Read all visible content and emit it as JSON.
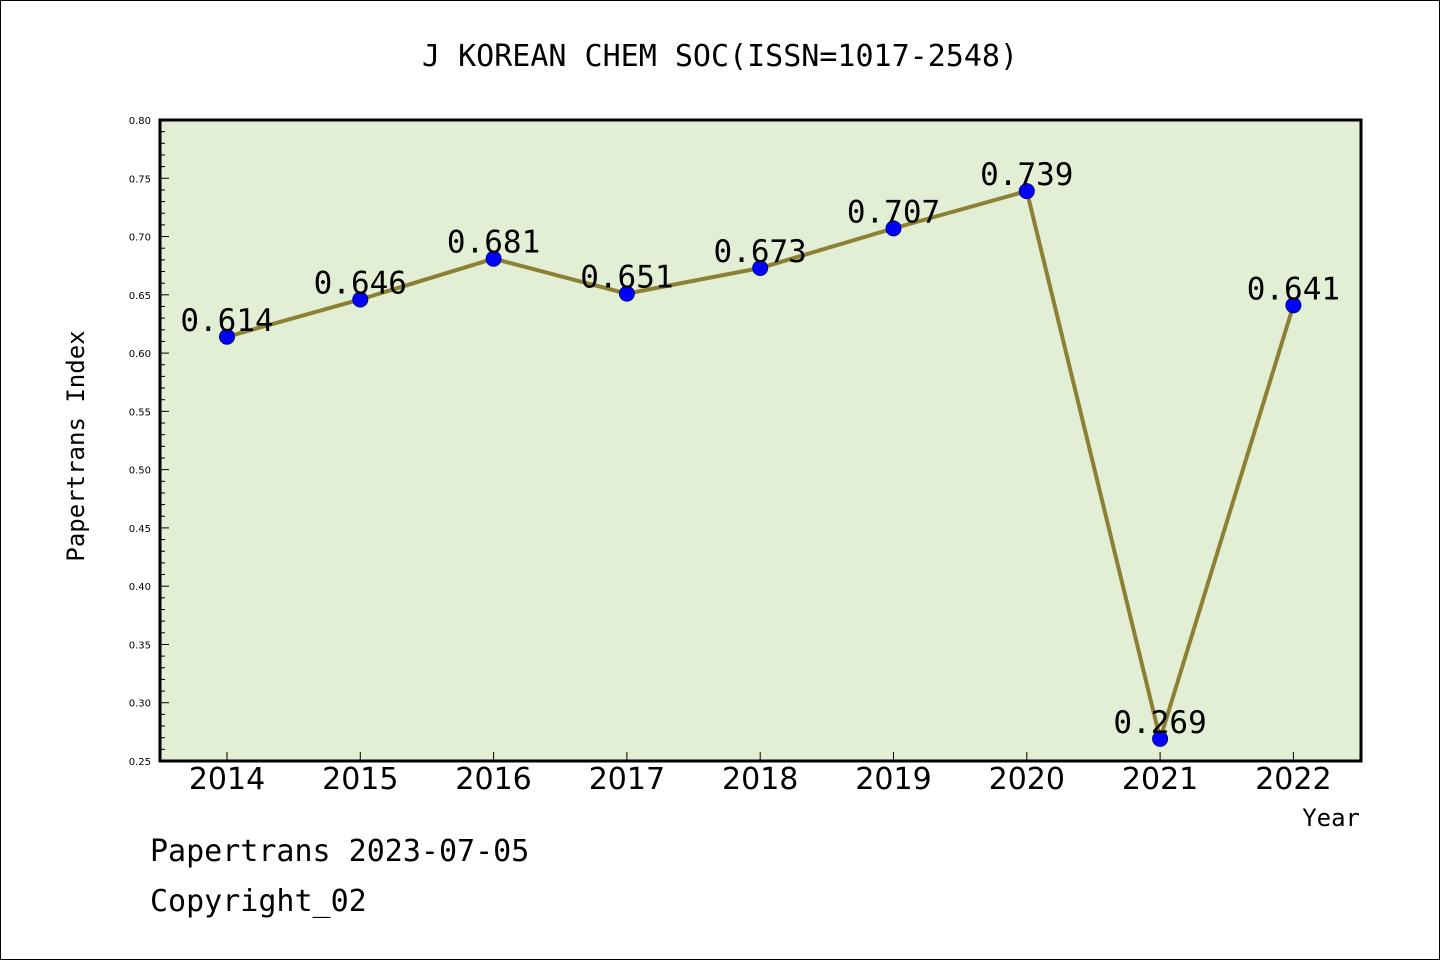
{
  "chart_data": {
    "type": "line",
    "title": "J KOREAN CHEM SOC(ISSN=1017-2548)",
    "xlabel": "Year",
    "ylabel": "Papertrans Index",
    "categories": [
      "2014",
      "2015",
      "2016",
      "2017",
      "2018",
      "2019",
      "2020",
      "2021",
      "2022"
    ],
    "series": [
      {
        "values": [
          0.614,
          0.646,
          0.681,
          0.651,
          0.673,
          0.707,
          0.739,
          0.269,
          0.641
        ],
        "point_labels": [
          "0.614",
          "0.646",
          "0.681",
          "0.651",
          "0.673",
          "0.707",
          "0.739",
          "0.269",
          "0.641"
        ]
      }
    ],
    "ylim": [
      0.25,
      0.8
    ],
    "yticks": [
      "0.25",
      "0.30",
      "0.35",
      "0.40",
      "0.45",
      "0.50",
      "0.55",
      "0.60",
      "0.65",
      "0.70",
      "0.75",
      "0.80"
    ],
    "grid": false,
    "colors": {
      "plot_background": "#e2efd4",
      "line": "#8c8035",
      "marker": "#0000ff"
    }
  },
  "footer": {
    "line1": "Papertrans 2023-07-05",
    "line2": "Copyright_02"
  }
}
